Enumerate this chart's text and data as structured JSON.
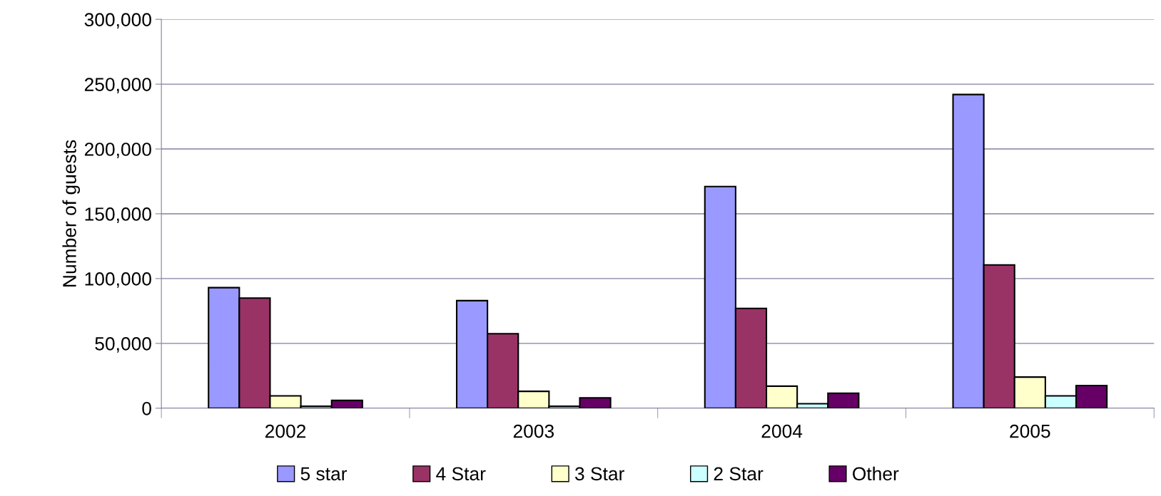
{
  "chart_data": {
    "type": "bar",
    "ylabel": "Number of guests",
    "categories": [
      "2002",
      "2003",
      "2004",
      "2005"
    ],
    "series": [
      {
        "name": "5 star",
        "color": "#9999ff",
        "values": [
          93000,
          83000,
          171000,
          242000
        ]
      },
      {
        "name": "4 Star",
        "color": "#993366",
        "values": [
          85000,
          57500,
          77000,
          110500
        ]
      },
      {
        "name": "3 Star",
        "color": "#ffffcc",
        "values": [
          9500,
          13000,
          17000,
          24000
        ]
      },
      {
        "name": "2 Star",
        "color": "#ccffff",
        "values": [
          1500,
          1500,
          3500,
          9500
        ]
      },
      {
        "name": "Other",
        "color": "#660066",
        "values": [
          6000,
          8000,
          11500,
          17500
        ]
      }
    ],
    "ylim": [
      0,
      300000
    ],
    "yticks": [
      {
        "value": 0,
        "label": "0"
      },
      {
        "value": 50000,
        "label": "50,000"
      },
      {
        "value": 100000,
        "label": "100,000"
      },
      {
        "value": 150000,
        "label": "150,000"
      },
      {
        "value": 200000,
        "label": "200,000"
      },
      {
        "value": 250000,
        "label": "250,000"
      },
      {
        "value": 300000,
        "label": "300,000"
      }
    ],
    "grid": "y",
    "legend": "bottom"
  }
}
